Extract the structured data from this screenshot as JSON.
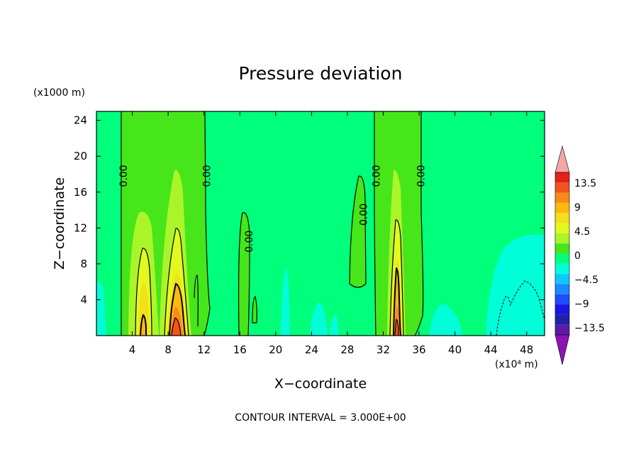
{
  "chart_data": {
    "type": "heatmap",
    "title": "Pressure deviation",
    "xlabel": "X−coordinate",
    "ylabel": "Z−coordinate",
    "x_unit_label": "(x10⁴ m)",
    "y_unit_label": "(x1000 m)",
    "xlim": [
      0,
      50
    ],
    "ylim": [
      0,
      25
    ],
    "x_ticks": [
      "4",
      "8",
      "12",
      "16",
      "20",
      "24",
      "28",
      "32",
      "36",
      "40",
      "44",
      "48"
    ],
    "y_ticks": [
      "4",
      "8",
      "12",
      "16",
      "20",
      "24"
    ],
    "footer": "CONTOUR INTERVAL = 3.000E+00",
    "colorbar": {
      "labels": [
        "13.5",
        "9",
        "4.5",
        "0",
        "−4.5",
        "−9",
        "−13.5"
      ],
      "colors": [
        "#f4a6a6",
        "#e8201a",
        "#f2541e",
        "#f98a1a",
        "#fdb90f",
        "#f3df1a",
        "#e3f81c",
        "#a9f52a",
        "#46e61a",
        "#00ff7a",
        "#00ffd8",
        "#0fc8ff",
        "#1b8bff",
        "#1f4dff",
        "#1818e0",
        "#2020a8",
        "#5a1ba6",
        "#8a14b2"
      ]
    },
    "contour_labels": [
      {
        "text": "0.00",
        "x": 3.0,
        "z": 17.8
      },
      {
        "text": "0.00",
        "x": 12.3,
        "z": 17.8
      },
      {
        "text": "0.00",
        "x": 17.0,
        "z": 10.5
      },
      {
        "text": "0.00",
        "x": 29.8,
        "z": 13.5
      },
      {
        "text": "0.00",
        "x": 31.2,
        "z": 17.8
      },
      {
        "text": "0.00",
        "x": 36.2,
        "z": 17.8
      }
    ],
    "features": [
      {
        "x_range": [
          2.8,
          12.2
        ],
        "z_top": 25,
        "value": 0.5
      },
      {
        "x_range": [
          31.0,
          36.2
        ],
        "z_top": 25,
        "value": 0.5
      },
      {
        "x_center": 5.2,
        "z_top": 14,
        "peak_value": 7.5
      },
      {
        "x_center": 9.0,
        "z_top": 18.5,
        "peak_value": 10.5
      },
      {
        "x_center": 33.5,
        "z_top": 18.5,
        "peak_value": 12
      },
      {
        "x_center": 16.6,
        "z_top": 14,
        "peak_value": 1
      },
      {
        "x_center": 29.2,
        "z_top": 18,
        "peak_value": 1
      },
      {
        "x_center": 48,
        "z_top": 11,
        "peak_value": -2
      }
    ]
  }
}
